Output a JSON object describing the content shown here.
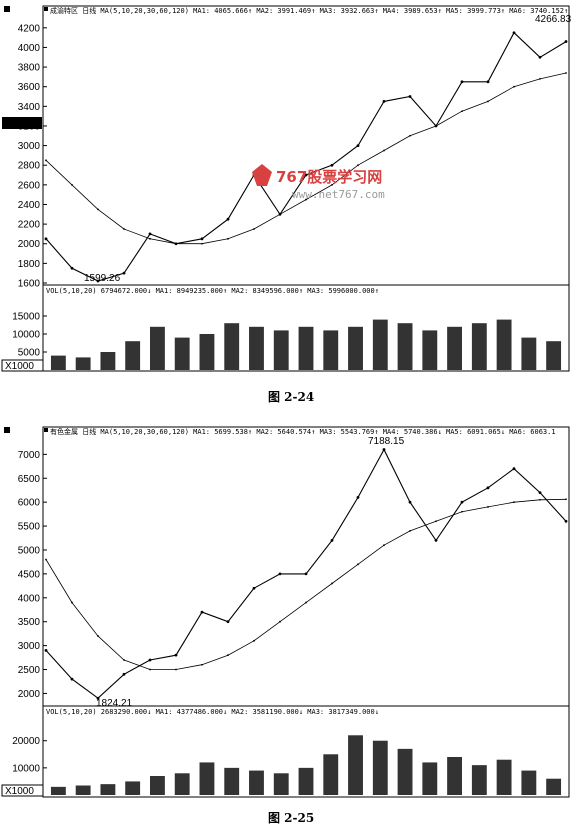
{
  "charts": [
    {
      "figure_caption": "图 2-24",
      "price_header": "成渝特区 日线 MA(5,10,20,30,60,120)  MA1: 4065.666↑ MA2: 3991.469↑ MA3: 3932.663↑ MA4: 3989.653↑ MA5: 3999.773↑ MA6: 3740.152↑",
      "volume_header": "VOL(5,10,20)  6794672.000↓  MA1: 8949235.000↑  MA2: 8349596.000↑  MA3: 5996000.000↑",
      "unit_label": "X1000",
      "low_annotation": "1599.26",
      "high_annotation": "4266.83"
    },
    {
      "figure_caption": "图 2-25",
      "price_header": "有色金属 日线 MA(5,10,20,30,60,120)  MA1: 5699.538↑ MA2: 5640.574↑ MA3: 5543.769↑ MA4: 5740.386↓ MA5: 6091.065↓ MA6: 6063.1",
      "volume_header": "VOL(5,10,20)  2683290.000↓  MA1: 4377486.000↓  MA2: 3581190.000↓  MA3: 3817349.000↓",
      "unit_label": "X1000",
      "low_annotation": "1824.21",
      "high_annotation": "7188.15"
    }
  ],
  "watermark": {
    "title": "767股票学习网",
    "url": "www.net767.com"
  },
  "colors": {
    "ink": "#000000",
    "watermark": "#d94141",
    "header_bar": "#000000"
  },
  "chart_data": [
    {
      "type": "line",
      "title": "成渝特区 日线",
      "ylim": [
        1600,
        4300
      ],
      "yticks": [
        1600,
        1800,
        2000,
        2200,
        2400,
        2600,
        2800,
        3000,
        3200,
        3400,
        3600,
        3800,
        4000,
        4200
      ],
      "x": [
        0,
        1,
        2,
        3,
        4,
        5,
        6,
        7,
        8,
        9,
        10,
        11,
        12,
        13,
        14,
        15,
        16,
        17,
        18,
        19,
        20
      ],
      "series": [
        {
          "name": "MA1",
          "values": [
            2050,
            1750,
            1620,
            1700,
            2100,
            2000,
            2050,
            2250,
            2700,
            2300,
            2700,
            2800,
            3000,
            3450,
            3500,
            3200,
            3650,
            3650,
            4150,
            3900,
            4060
          ]
        },
        {
          "name": "MA6",
          "values": [
            2850,
            2600,
            2350,
            2150,
            2050,
            2000,
            2000,
            2050,
            2150,
            2300,
            2450,
            2600,
            2800,
            2950,
            3100,
            3200,
            3350,
            3450,
            3600,
            3680,
            3740
          ]
        }
      ],
      "volume": {
        "ylim": [
          0,
          20000
        ],
        "yticks": [
          5000,
          10000,
          15000
        ],
        "values": [
          4000,
          3500,
          5000,
          8000,
          12000,
          9000,
          10000,
          13000,
          12000,
          11000,
          12000,
          11000,
          12000,
          14000,
          13000,
          11000,
          12000,
          13000,
          14000,
          9000,
          8000
        ]
      }
    },
    {
      "type": "line",
      "title": "有色金属 日线",
      "ylim": [
        1800,
        7300
      ],
      "yticks": [
        2000,
        2500,
        3000,
        3500,
        4000,
        4500,
        5000,
        5500,
        6000,
        6500,
        7000
      ],
      "x": [
        0,
        1,
        2,
        3,
        4,
        5,
        6,
        7,
        8,
        9,
        10,
        11,
        12,
        13,
        14,
        15,
        16,
        17,
        18,
        19,
        20
      ],
      "series": [
        {
          "name": "MA1",
          "values": [
            2900,
            2300,
            1900,
            2400,
            2700,
            2800,
            3700,
            3500,
            4200,
            4500,
            4500,
            5200,
            6100,
            7100,
            6000,
            5200,
            6000,
            6300,
            6700,
            6200,
            5600
          ]
        },
        {
          "name": "MA6",
          "values": [
            4800,
            3900,
            3200,
            2700,
            2500,
            2500,
            2600,
            2800,
            3100,
            3500,
            3900,
            4300,
            4700,
            5100,
            5400,
            5600,
            5800,
            5900,
            6000,
            6050,
            6060
          ]
        }
      ],
      "volume": {
        "ylim": [
          0,
          28000
        ],
        "yticks": [
          10000,
          20000
        ],
        "values": [
          3000,
          3500,
          4000,
          5000,
          7000,
          8000,
          12000,
          10000,
          9000,
          8000,
          10000,
          15000,
          22000,
          20000,
          17000,
          12000,
          14000,
          11000,
          13000,
          9000,
          6000
        ]
      }
    }
  ]
}
